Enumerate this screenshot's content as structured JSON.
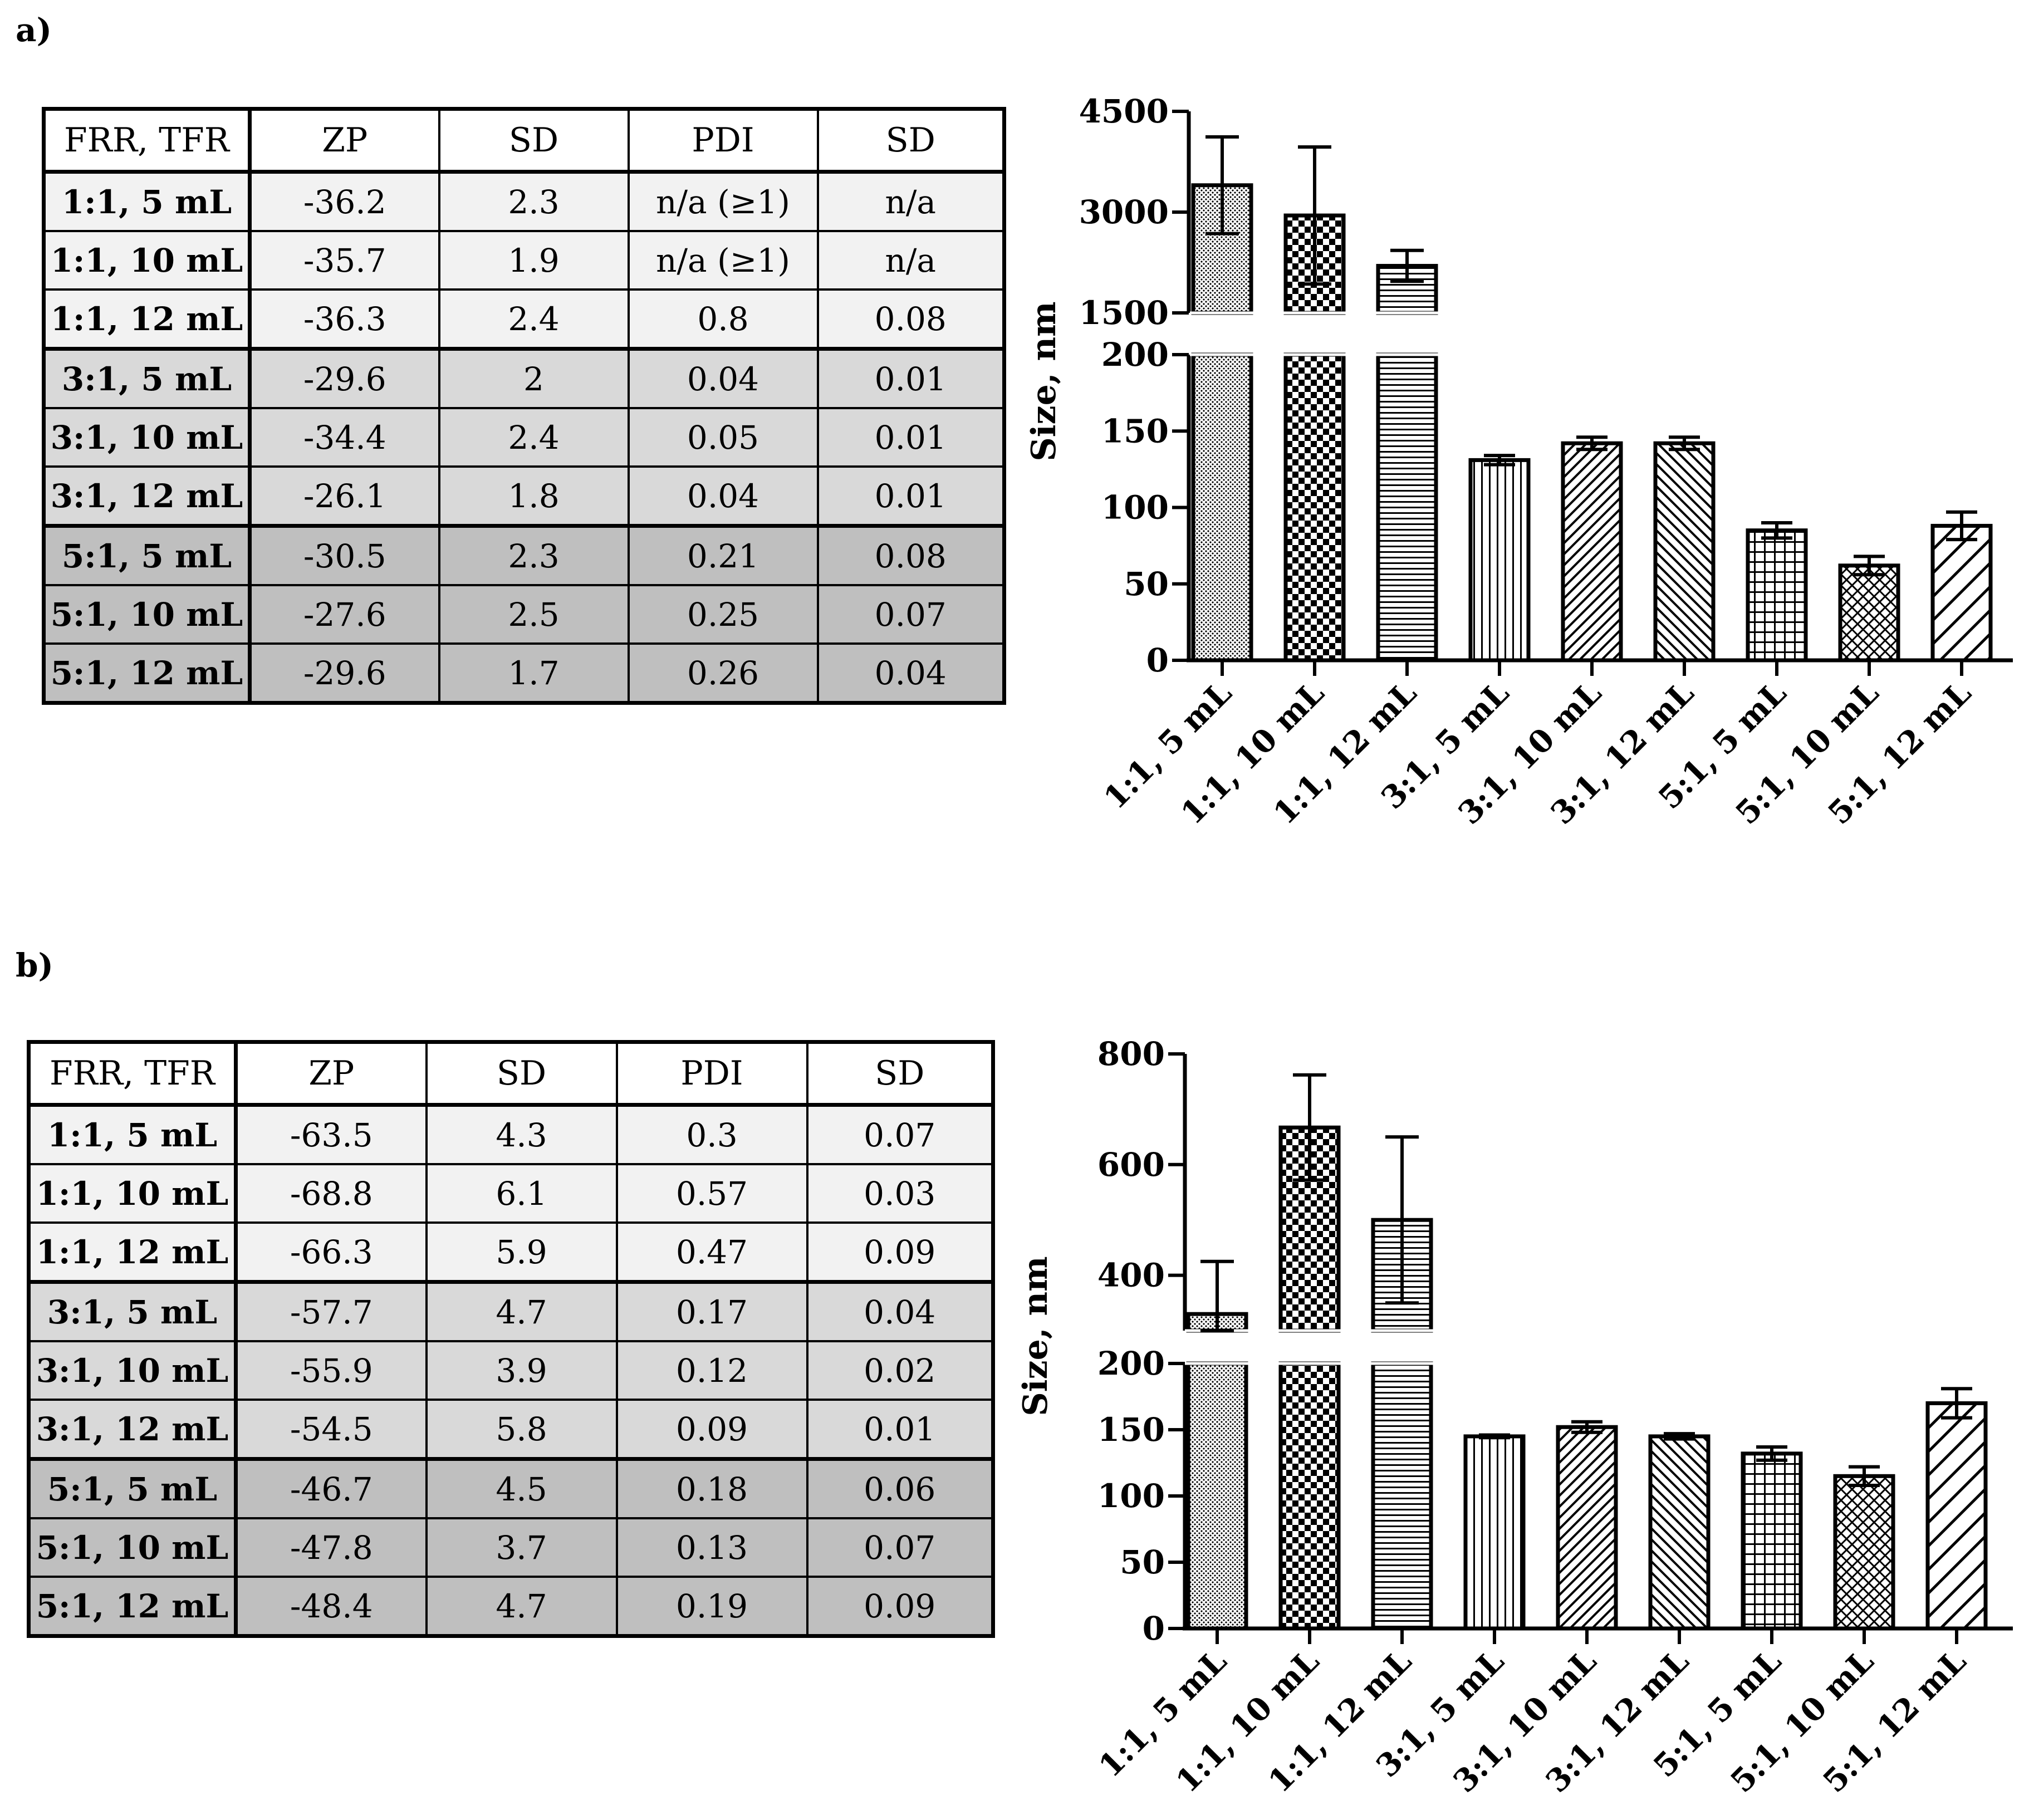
{
  "panels": [
    {
      "label": "a)",
      "table": {
        "headers": [
          "FRR, TFR",
          "ZP",
          "SD",
          "PDI",
          "SD"
        ],
        "rows": [
          [
            "1:1, 5 mL",
            "-36.2",
            "2.3",
            "n/a (≥1)",
            "n/a"
          ],
          [
            "1:1, 10 mL",
            "-35.7",
            "1.9",
            "n/a (≥1)",
            "n/a"
          ],
          [
            "1:1, 12 mL",
            "-36.3",
            "2.4",
            "0.8",
            "0.08"
          ],
          [
            "3:1, 5 mL",
            "-29.6",
            "2",
            "0.04",
            "0.01"
          ],
          [
            "3:1, 10 mL",
            "-34.4",
            "2.4",
            "0.05",
            "0.01"
          ],
          [
            "3:1, 12 mL",
            "-26.1",
            "1.8",
            "0.04",
            "0.01"
          ],
          [
            "5:1, 5 mL",
            "-30.5",
            "2.3",
            "0.21",
            "0.08"
          ],
          [
            "5:1, 10 mL",
            "-27.6",
            "2.5",
            "0.25",
            "0.07"
          ],
          [
            "5:1, 12 mL",
            "-29.6",
            "1.7",
            "0.26",
            "0.04"
          ]
        ]
      }
    },
    {
      "label": "b)",
      "table": {
        "headers": [
          "FRR, TFR",
          "ZP",
          "SD",
          "PDI",
          "SD"
        ],
        "rows": [
          [
            "1:1, 5 mL",
            "-63.5",
            "4.3",
            "0.3",
            "0.07"
          ],
          [
            "1:1, 10 mL",
            "-68.8",
            "6.1",
            "0.57",
            "0.03"
          ],
          [
            "1:1, 12 mL",
            "-66.3",
            "5.9",
            "0.47",
            "0.09"
          ],
          [
            "3:1, 5 mL",
            "-57.7",
            "4.7",
            "0.17",
            "0.04"
          ],
          [
            "3:1, 10 mL",
            "-55.9",
            "3.9",
            "0.12",
            "0.02"
          ],
          [
            "3:1, 12 mL",
            "-54.5",
            "5.8",
            "0.09",
            "0.01"
          ],
          [
            "5:1, 5 mL",
            "-46.7",
            "4.5",
            "0.18",
            "0.06"
          ],
          [
            "5:1, 10 mL",
            "-47.8",
            "3.7",
            "0.13",
            "0.07"
          ],
          [
            "5:1, 12 mL",
            "-48.4",
            "4.7",
            "0.19",
            "0.09"
          ]
        ]
      }
    }
  ],
  "chart_data": [
    {
      "type": "bar",
      "categories": [
        "1:1, 5 mL",
        "1:1, 10 mL",
        "1:1, 12 mL",
        "3:1, 5 mL",
        "3:1, 10 mL",
        "3:1, 12 mL",
        "5:1, 5 mL",
        "5:1, 10 mL",
        "5:1, 12 mL"
      ],
      "values": [
        3400,
        2950,
        2200,
        131,
        142,
        142,
        85,
        62,
        88
      ],
      "errors": [
        720,
        1020,
        230,
        3,
        4,
        4,
        5,
        6,
        9
      ],
      "ylabel": "Size, nm",
      "broken_axis": true,
      "lower_range": [
        0,
        200
      ],
      "upper_range": [
        1500,
        4500
      ],
      "lower_ticks": [
        0,
        50,
        100,
        150,
        200
      ],
      "upper_ticks": [
        1500,
        3000,
        4500
      ],
      "patterns": [
        "dots",
        "checker",
        "horizontal",
        "vertical",
        "diag-right",
        "diag-left",
        "grid",
        "diag-cross",
        "diag-wide"
      ],
      "grid": false
    },
    {
      "type": "bar",
      "categories": [
        "1:1, 5 mL",
        "1:1, 10 mL",
        "1:1, 12 mL",
        "3:1, 5 mL",
        "3:1, 10 mL",
        "3:1, 12 mL",
        "5:1, 5 mL",
        "5:1, 10 mL",
        "5:1, 12 mL"
      ],
      "values": [
        330,
        667,
        500,
        145,
        152,
        145,
        132,
        115,
        170
      ],
      "errors": [
        95,
        95,
        150,
        1,
        4,
        2,
        5,
        7,
        11
      ],
      "ylabel": "Size, nm",
      "broken_axis": true,
      "lower_range": [
        0,
        200
      ],
      "upper_range": [
        300,
        800
      ],
      "lower_ticks": [
        0,
        50,
        100,
        150,
        200
      ],
      "upper_ticks": [
        400,
        600,
        800
      ],
      "patterns": [
        "dots",
        "checker",
        "horizontal",
        "vertical",
        "diag-right",
        "diag-left",
        "grid",
        "diag-cross",
        "diag-wide"
      ],
      "grid": false
    }
  ]
}
